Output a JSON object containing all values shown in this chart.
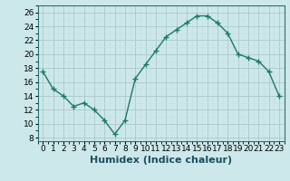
{
  "x": [
    0,
    1,
    2,
    3,
    4,
    5,
    6,
    7,
    8,
    9,
    10,
    11,
    12,
    13,
    14,
    15,
    16,
    17,
    18,
    19,
    20,
    21,
    22,
    23
  ],
  "y": [
    17.5,
    15.0,
    14.0,
    12.5,
    13.0,
    12.0,
    10.5,
    8.5,
    10.5,
    16.5,
    18.5,
    20.5,
    22.5,
    23.5,
    24.5,
    25.5,
    25.5,
    24.5,
    23.0,
    20.0,
    19.5,
    19.0,
    17.5,
    14.0
  ],
  "line_color": "#1a7a6a",
  "marker": "+",
  "marker_size": 4,
  "bg_color": "#cde8ea",
  "grid_major_color": "#b0ccce",
  "grid_minor_color": "#c8e0e2",
  "xlabel": "Humidex (Indice chaleur)",
  "ylabel_ticks": [
    8,
    10,
    12,
    14,
    16,
    18,
    20,
    22,
    24,
    26
  ],
  "ylim": [
    7.5,
    27.0
  ],
  "xlim": [
    -0.5,
    23.5
  ],
  "xlabel_fontsize": 8,
  "tick_fontsize": 6.5,
  "line_width": 1.0
}
